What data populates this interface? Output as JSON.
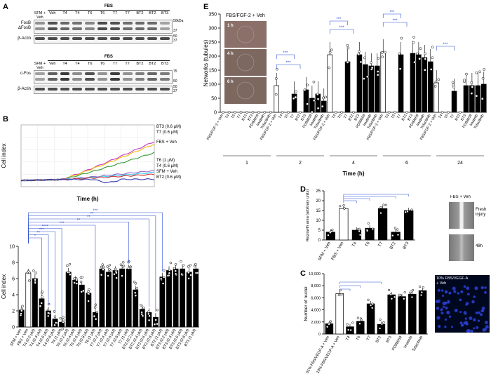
{
  "panels": {
    "a": "A",
    "b": "B",
    "c": "C",
    "d": "D",
    "e": "E"
  },
  "panel_a": {
    "header": "FBS",
    "lanes": [
      "SFM\n+ Veh",
      "Veh",
      "T4",
      "T4",
      "T6",
      "T6",
      "T7",
      "T7",
      "BT2",
      "BT2",
      "BT3"
    ],
    "lane_text": [
      "SFM + Veh",
      "Veh",
      "T4",
      "T4",
      "T6",
      "T6",
      "T7",
      "T7",
      "BT2",
      "BT2",
      "BT3"
    ],
    "blots": [
      {
        "label": "FosB\nΔFosB",
        "label1": "FosB",
        "label2": "ΔFosB",
        "mw": [
          "50kDa",
          "37"
        ]
      },
      {
        "label": "β-Actin",
        "label1": "β-Actin",
        "label2": "",
        "mw": [
          "50",
          "37"
        ]
      },
      {
        "label": "c-Fos",
        "label1": "c-Fos",
        "label2": "",
        "mw": [
          "75",
          "50"
        ]
      },
      {
        "label": "β-Actin",
        "label1": "β-Actin",
        "label2": "",
        "mw": [
          "50",
          "37"
        ]
      }
    ]
  },
  "panel_b_trace": {
    "ylabel": "Cell index",
    "xlabel": "Time (h)",
    "legend": [
      "BT3 (0.6 µM)",
      "T7 (0.6 µM)",
      "FBS + Veh",
      "T6 (1 µM)",
      "T4 (0.6 µM)",
      "SFM + Veh",
      "BT2 (0.6 µM)"
    ],
    "colors": [
      "#cc33cc",
      "#f0c000",
      "#339933",
      "#9966cc",
      "#33ccee",
      "#cc3333",
      "#3333aa"
    ]
  },
  "chart_data": [
    {
      "type": "bar",
      "title": "",
      "ylabel": "Cell index",
      "ylim": [
        0,
        10
      ],
      "categories": [
        "SFM + Veh",
        "FBS + Veh",
        "T4 (0.2 µM)",
        "T4 (0.4 µM)",
        "T4 (0.6 µM)",
        "T4 (0.8 µM)",
        "T4 (1 µM)",
        "T6 (0.2 µM)",
        "T6 (0.4 µM)",
        "T6 (0.6 µM)",
        "T6 (0.8 µM)",
        "T6 (1 µM)",
        "T7 (0.2 µM)",
        "T7 (0.4 µM)",
        "T7 (0.6 µM)",
        "T7 (0.8 µM)",
        "T7 (1 µM)",
        "BT2 (0.2 µM)",
        "BT2 (0.4 µM)",
        "BT2 (0.6 µM)",
        "BT2 (0.8 µM)",
        "BT2 (1 µM)",
        "BT3 (0.2 µM)",
        "BT3 (0.4 µM)",
        "BT3 (0.6 µM)",
        "BT3 (0.8 µM)",
        "BT3 (1 µM)"
      ],
      "values": [
        2.1,
        6.7,
        6.0,
        3.5,
        2.0,
        1.0,
        0.6,
        6.8,
        5.8,
        5.2,
        4.2,
        1.8,
        7.2,
        6.8,
        7.0,
        7.2,
        7.2,
        4.6,
        2.2,
        1.8,
        1.2,
        6.2,
        7.0,
        7.2,
        7.2,
        6.8,
        7.2
      ],
      "significance": [
        "*",
        "**",
        "***",
        "****",
        "***",
        "**",
        "**",
        "**",
        "***"
      ]
    },
    {
      "type": "bar",
      "ylabel": "Networks (tubules)",
      "xlabel": "Time (h)",
      "ylim": [
        0,
        350
      ],
      "groups": [
        "1",
        "2",
        "4",
        "6",
        "24"
      ],
      "categories": [
        "FBS/FGF-2 + Veh",
        "T4",
        "T6",
        "T7",
        "BT2",
        "BT3",
        "PD98059",
        "Imatinib",
        "Tofacitinib"
      ],
      "series": [
        {
          "name": "1 h",
          "values": [
            0,
            0,
            0,
            0,
            0,
            0,
            0,
            0,
            0
          ]
        },
        {
          "name": "2 h",
          "values": [
            95,
            0,
            0,
            65,
            0,
            80,
            50,
            65,
            40
          ]
        },
        {
          "name": "4 h",
          "values": [
            205,
            0,
            0,
            180,
            0,
            205,
            170,
            165,
            165
          ]
        },
        {
          "name": "6 h",
          "values": [
            215,
            0,
            0,
            205,
            0,
            210,
            205,
            195,
            180
          ]
        },
        {
          "name": "24 h",
          "values": [
            105,
            0,
            0,
            75,
            0,
            95,
            95,
            95,
            100
          ]
        }
      ],
      "significance": [
        "***",
        "***",
        "***",
        "***",
        "***",
        "***",
        "***"
      ],
      "photo_title": "FBS/FGF-2 + Veh",
      "photo_labels": [
        "1 h",
        "4 h",
        "6 h"
      ]
    },
    {
      "type": "bar",
      "ylabel": "Regrowth area (arbitrary units)",
      "ylim": [
        0,
        25
      ],
      "categories": [
        "SFM + Veh",
        "FBS + Veh",
        "T4",
        "T6",
        "T7",
        "BT2",
        "BT3"
      ],
      "values": [
        4,
        16,
        5,
        6,
        16,
        4,
        15
      ],
      "photo_title": "FBS + Veh",
      "photo_labels": [
        "Fresh injury",
        "48h"
      ]
    },
    {
      "type": "bar",
      "ylabel": "Number of nuclei",
      "ylim": [
        0,
        10000
      ],
      "categories": [
        "0.01% FBS/VEGF-A + Veh",
        "10% FBS/VEGF-A + Veh",
        "T4",
        "T6",
        "T7",
        "BT2",
        "BT3",
        "PD98059",
        "Imatinib",
        "Tofacitinib"
      ],
      "values": [
        1700,
        6700,
        1200,
        2100,
        5000,
        1600,
        6500,
        6200,
        6600,
        7200
      ],
      "photo_title": "10% FBS/VEGF-A + Veh"
    }
  ],
  "e_photo_title": "FBS/FGF-2 + Veh",
  "e_photo_labels": [
    "1 h",
    "4 h",
    "6 h"
  ],
  "d_photo": {
    "title": "FBS + Veh",
    "fresh": "Fresh injury",
    "h48": "48h"
  },
  "c_photo": {
    "title": "10% FBS/VEGF-A",
    "sub": "+ Veh"
  }
}
